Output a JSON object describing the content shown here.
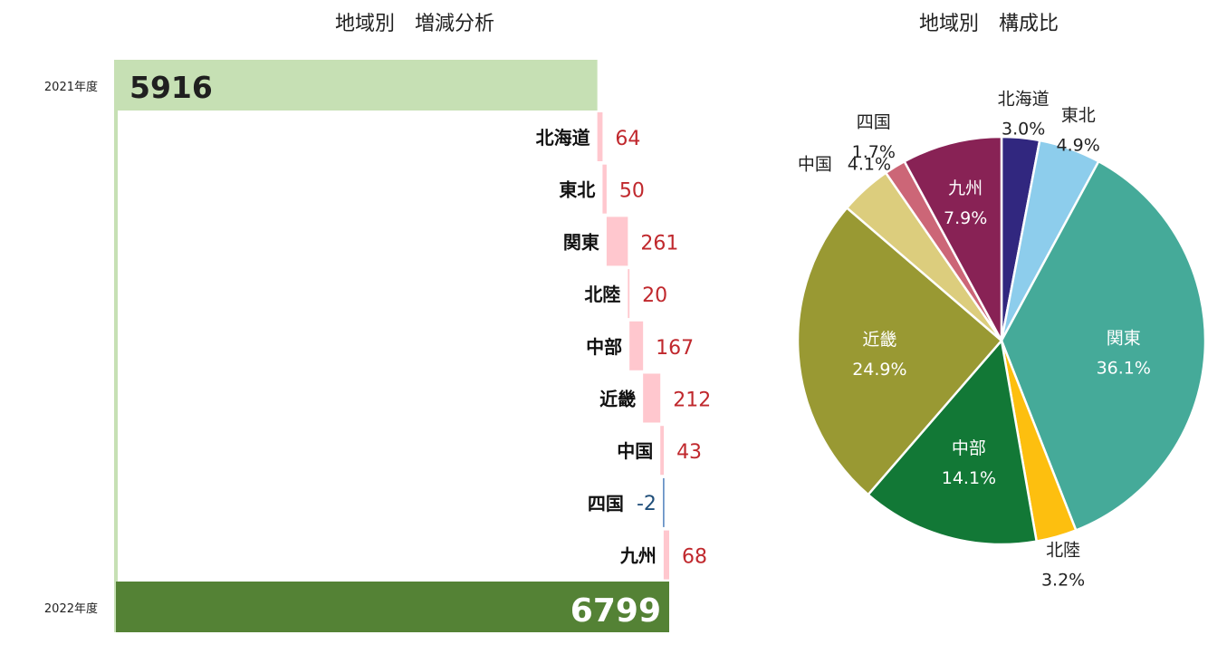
{
  "waterfall": {
    "title": "地域別　増減分析",
    "start_label": "2021年度",
    "end_label": "2022年度",
    "start_value": "5916",
    "end_value": "6799",
    "colors": {
      "start": "#c6e0b4",
      "end": "#548235",
      "positive": "#ffc7ce",
      "negative": "#4f81bd",
      "pos_text": "#c0282d",
      "neg_text": "#1f4e79",
      "axis": "#c6e0b4"
    }
  },
  "pie": {
    "title": "地域別　構成比",
    "colors": {
      "border": "#ffffff"
    }
  },
  "chart_data": [
    {
      "type": "bar",
      "subtype": "waterfall",
      "title": "地域別　増減分析",
      "orientation": "horizontal",
      "start": {
        "label": "2021年度",
        "value": 5916
      },
      "end": {
        "label": "2022年度",
        "value": 6799
      },
      "categories": [
        "北海道",
        "東北",
        "関東",
        "北陸",
        "中部",
        "近畿",
        "中国",
        "四国",
        "九州"
      ],
      "values": [
        64,
        50,
        261,
        20,
        167,
        212,
        43,
        -2,
        68
      ],
      "value_labels": [
        "64",
        "50",
        "261",
        "20",
        "167",
        "212",
        "43",
        "-2",
        "68"
      ]
    },
    {
      "type": "pie",
      "title": "地域別　構成比",
      "labels": [
        "北海道",
        "東北",
        "関東",
        "北陸",
        "中部",
        "近畿",
        "中国",
        "四国",
        "九州"
      ],
      "values": [
        3.0,
        4.9,
        36.1,
        3.2,
        14.1,
        24.9,
        4.1,
        1.7,
        7.9
      ],
      "value_labels": [
        "3.0%",
        "4.9%",
        "36.1%",
        "3.2%",
        "14.1%",
        "24.9%",
        "4.1%",
        "1.7%",
        "7.9%"
      ],
      "colors": [
        "#31277f",
        "#8dcdec",
        "#45aa99",
        "#fdbf0f",
        "#127836",
        "#999933",
        "#dccd7d",
        "#cc6677",
        "#882255"
      ],
      "start_angle": "12 o'clock",
      "direction": "clockwise"
    }
  ]
}
